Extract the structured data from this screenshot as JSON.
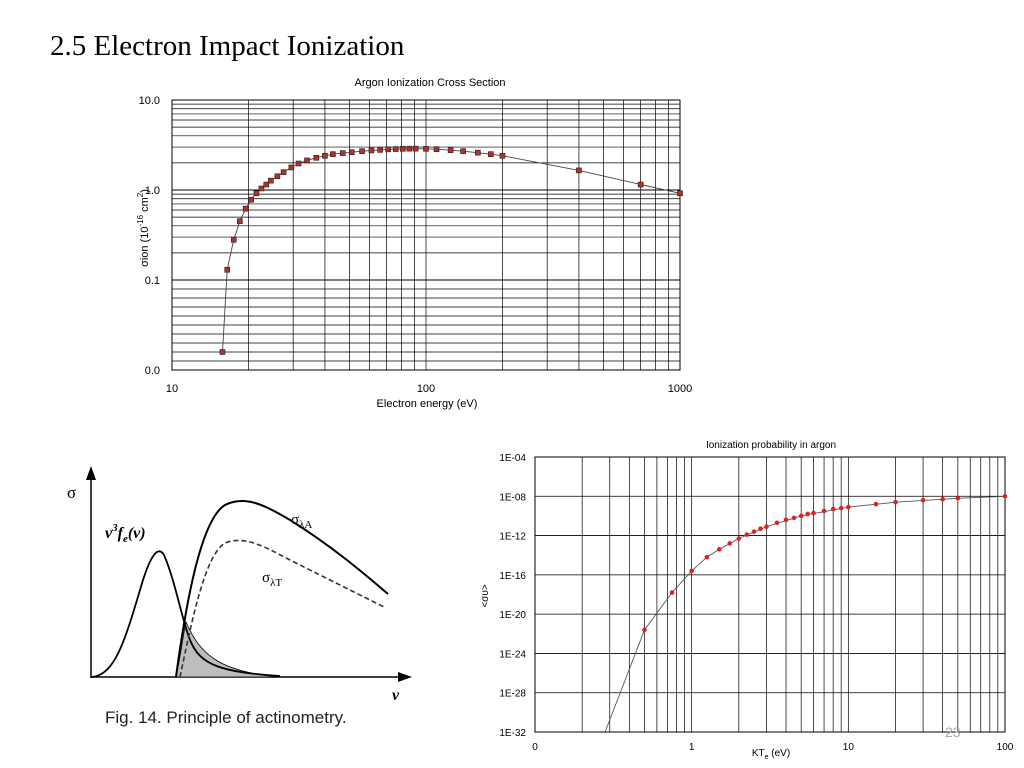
{
  "slide": {
    "title": "2.5 Electron Impact Ionization",
    "page_number": "23"
  },
  "chart_data": [
    {
      "id": "cross-section",
      "type": "scatter",
      "title": "Argon Ionization Cross Section",
      "xlabel": "Electron energy (eV)",
      "ylabel_main": "σion (10",
      "ylabel_exp": "-16",
      "ylabel_unit": " cm",
      "ylabel_unit_exp": "2",
      "ylabel_close": ")",
      "x_scale": "log",
      "xlim": [
        10,
        1000
      ],
      "x_ticks": [
        {
          "v": 10,
          "label": "10"
        },
        {
          "v": 100,
          "label": "100"
        },
        {
          "v": 1000,
          "label": "1000"
        }
      ],
      "y_ticks": [
        {
          "v": 0.0,
          "label": "0.0"
        },
        {
          "v": 0.1,
          "label": "0.1"
        },
        {
          "v": 1.0,
          "label": "1.0"
        },
        {
          "v": 10.0,
          "label": "10.0"
        }
      ],
      "grid": true,
      "marker_color": "#b03030",
      "x": [
        15.8,
        16.5,
        17.5,
        18.5,
        19.5,
        20.5,
        21.5,
        22.5,
        23.5,
        24.5,
        26,
        27.5,
        29.5,
        31.5,
        34,
        37,
        40,
        43,
        47,
        51,
        56,
        61,
        66,
        71,
        76,
        81,
        86,
        91,
        100,
        110,
        125,
        140,
        160,
        180,
        200,
        400,
        700,
        1000
      ],
      "y": [
        0.02,
        0.13,
        0.28,
        0.45,
        0.62,
        0.78,
        0.92,
        1.04,
        1.15,
        1.27,
        1.42,
        1.58,
        1.78,
        1.97,
        2.13,
        2.28,
        2.4,
        2.5,
        2.57,
        2.63,
        2.7,
        2.75,
        2.79,
        2.83,
        2.85,
        2.87,
        2.88,
        2.88,
        2.87,
        2.84,
        2.77,
        2.7,
        2.6,
        2.5,
        2.4,
        1.65,
        1.15,
        0.92
      ]
    },
    {
      "id": "actinometry",
      "type": "line",
      "axis_y_label": "σ",
      "axis_x_label": "v",
      "series": [
        {
          "name": "v³fe(v)",
          "label_main": "v",
          "label_sup": "3",
          "label_f": "f",
          "label_sub": "e",
          "label_close": "(v)"
        },
        {
          "name": "σλA",
          "label_main": "σ",
          "label_sub": "λA"
        },
        {
          "name": "σλT",
          "label_main": "σ",
          "label_sub": "λT"
        }
      ],
      "caption": "Fig. 14.  Principle of actinometry."
    },
    {
      "id": "ion-probability",
      "type": "scatter",
      "title": "Ionization probability in argon",
      "xlabel_main": "KT",
      "xlabel_sub": "e",
      "xlabel_unit": " (eV)",
      "ylabel": "<συ>",
      "x_scale": "log",
      "y_scale": "log",
      "x_ticks": [
        {
          "v": 0.1,
          "label": "0"
        },
        {
          "v": 1,
          "label": "1"
        },
        {
          "v": 10,
          "label": "10"
        },
        {
          "v": 100,
          "label": "100"
        }
      ],
      "y_ticks": [
        {
          "e": -4,
          "label": "1E-04"
        },
        {
          "e": -8,
          "label": "1E-08"
        },
        {
          "e": -12,
          "label": "1E-12"
        },
        {
          "e": -16,
          "label": "1E-16"
        },
        {
          "e": -20,
          "label": "1E-20"
        },
        {
          "e": -24,
          "label": "1E-24"
        },
        {
          "e": -28,
          "label": "1E-28"
        },
        {
          "e": -32,
          "label": "1E-32"
        }
      ],
      "ylim_exp": [
        -32,
        -4
      ],
      "xlim": [
        0.1,
        100
      ],
      "grid": true,
      "marker_color": "#dd2222",
      "x": [
        0.5,
        0.75,
        1.0,
        1.25,
        1.5,
        1.75,
        2.0,
        2.25,
        2.5,
        2.75,
        3.0,
        3.5,
        4.0,
        4.5,
        5.0,
        5.5,
        6.0,
        7.0,
        8.0,
        9.0,
        10,
        15,
        20,
        30,
        40,
        50,
        100
      ],
      "y_exp": [
        -21.6,
        -17.8,
        -15.6,
        -14.2,
        -13.4,
        -12.8,
        -12.3,
        -11.9,
        -11.6,
        -11.3,
        -11.1,
        -10.7,
        -10.4,
        -10.2,
        -10.0,
        -9.8,
        -9.7,
        -9.5,
        -9.3,
        -9.2,
        -9.1,
        -8.8,
        -8.6,
        -8.4,
        -8.3,
        -8.2,
        -8.0
      ],
      "curve_x": [
        0.28,
        0.5,
        0.75,
        1.0,
        1.25,
        1.5,
        2.0,
        3.0,
        5.0,
        10,
        20,
        50,
        100
      ],
      "curve_y_exp": [
        -32,
        -21.6,
        -17.8,
        -15.6,
        -14.2,
        -13.4,
        -12.3,
        -11.1,
        -10.0,
        -9.1,
        -8.6,
        -8.2,
        -8.0
      ]
    }
  ]
}
